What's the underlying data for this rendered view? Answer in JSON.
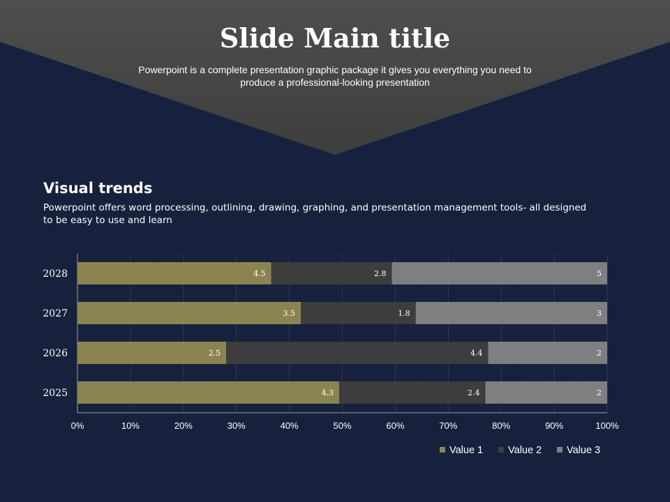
{
  "slide": {
    "title": "Slide Main title",
    "subtitle": "Powerpoint is a complete presentation graphic package it gives you everything you need to produce a professional-looking presentation"
  },
  "section": {
    "heading": "Visual trends",
    "body": "Powerpoint offers word processing, outlining, drawing, graphing, and presentation management tools- all designed to be easy to use and learn"
  },
  "colors": {
    "background": "#14203b",
    "banner": "#4a4a4a",
    "value1": "#8c8450",
    "value2": "#3d3d3d",
    "value3": "#7f7f7f"
  },
  "chart_data": {
    "type": "bar",
    "orientation": "horizontal",
    "stacking": "percent",
    "categories": [
      "2028",
      "2027",
      "2026",
      "2025"
    ],
    "series": [
      {
        "name": "Value 1",
        "values": [
          4.5,
          3.5,
          2.5,
          4.3
        ]
      },
      {
        "name": "Value 2",
        "values": [
          2.8,
          1.8,
          4.4,
          2.4
        ]
      },
      {
        "name": "Value 3",
        "values": [
          5,
          3,
          2,
          2
        ]
      }
    ],
    "xticks": [
      "0%",
      "10%",
      "20%",
      "30%",
      "40%",
      "50%",
      "60%",
      "70%",
      "80%",
      "90%",
      "100%"
    ],
    "xlim": [
      0,
      100
    ],
    "grid": true,
    "legend": "bottom-right"
  }
}
